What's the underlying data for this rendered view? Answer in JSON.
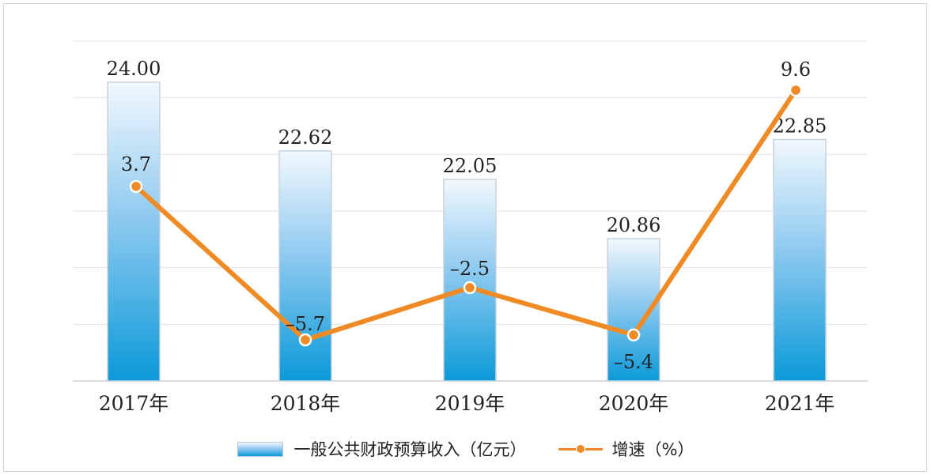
{
  "chart_data": {
    "type": "bar",
    "categories": [
      "2017年",
      "2018年",
      "2019年",
      "2020年",
      "2021年"
    ],
    "series": [
      {
        "name": "一般公共财政预算收入（亿元）",
        "type": "bar",
        "values": [
          24.0,
          22.62,
          22.05,
          20.86,
          22.85
        ],
        "labels": [
          "24.00",
          "22.62",
          "22.05",
          "20.86",
          "22.85"
        ],
        "color": "#0b9ad8"
      },
      {
        "name": "增速（%）",
        "type": "line",
        "values": [
          3.7,
          -5.7,
          -2.5,
          -5.4,
          9.6
        ],
        "labels": [
          "3.7",
          "–5.7",
          "–2.5",
          "–5.4",
          "9.6"
        ],
        "color": "#f08a24"
      }
    ],
    "grid": true,
    "legend_position": "bottom"
  }
}
